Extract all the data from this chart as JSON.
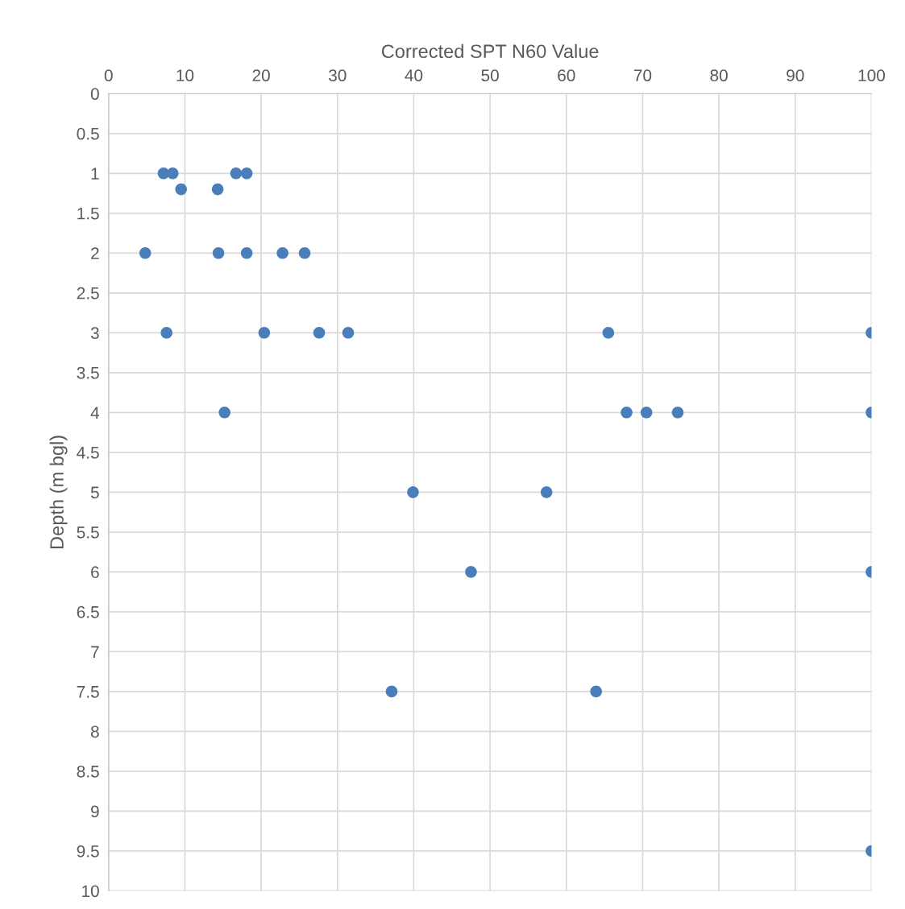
{
  "chart_data": {
    "type": "scatter",
    "xlabel": "Corrected SPT N60 Value",
    "ylabel": "Depth (m bgl)",
    "series": [
      {
        "color": "#4a7ebb",
        "x": [
          7.2,
          8.4,
          16.7,
          18.1,
          9.5,
          14.3,
          4.8,
          14.4,
          18.1,
          22.8,
          25.7,
          7.6,
          20.4,
          27.6,
          31.4,
          65.5,
          100,
          15.2,
          67.9,
          70.5,
          74.6,
          100,
          39.9,
          57.4,
          47.5,
          100,
          37.1,
          63.9,
          100
        ],
        "values": [
          1,
          1,
          1,
          1,
          1.2,
          1.2,
          2,
          2,
          2,
          2,
          2,
          3,
          3,
          3,
          3,
          3,
          3,
          4,
          4,
          4,
          4,
          4,
          5,
          5,
          6,
          6,
          7.5,
          7.5,
          9.5
        ]
      }
    ],
    "xlim": [
      0,
      100
    ],
    "xticks": [
      0,
      10,
      20,
      30,
      40,
      50,
      60,
      70,
      80,
      90,
      100
    ],
    "ylim": [
      10,
      0
    ],
    "yticks": [
      0,
      0.5,
      1,
      1.5,
      2,
      2.5,
      3,
      3.5,
      4,
      4.5,
      5,
      5.5,
      6,
      6.5,
      7,
      7.5,
      8,
      8.5,
      9,
      9.5,
      10
    ],
    "grid": true,
    "marker": "circle"
  }
}
